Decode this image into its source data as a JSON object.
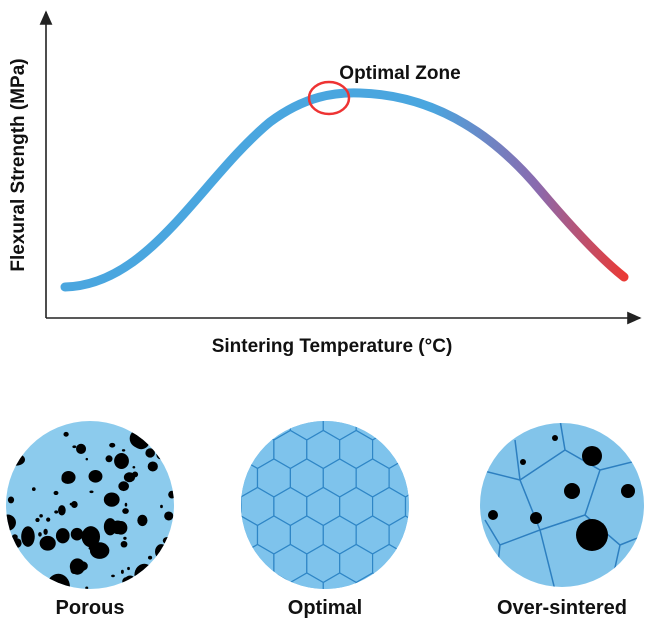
{
  "diagram": {
    "y_axis_label": "Flexural Strength (MPa)",
    "x_axis_label": "Sintering Temperature (°C)",
    "annotation": "Optimal Zone",
    "panels": [
      {
        "label": "Porous"
      },
      {
        "label": "Optimal"
      },
      {
        "label": "Over-sintered"
      }
    ]
  }
}
